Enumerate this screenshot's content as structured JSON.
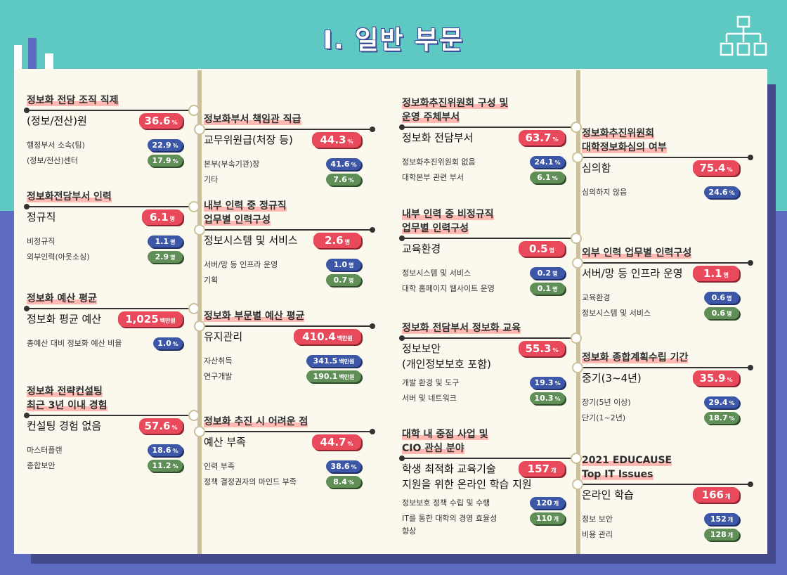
{
  "title": "Ⅰ. 일반 부문",
  "colors": {
    "teal": "#5ec8c2",
    "indigo": "#5d6cc0",
    "red": "#e84a5b",
    "blue": "#3d57a8",
    "green": "#5f8f57",
    "panel": "#fbf9ee"
  },
  "sections": {
    "s1": {
      "title": "정보화 전담 조직 직제",
      "main": "(정보/전산)원",
      "main_val": "36.6",
      "main_unit": "%",
      "r1": "행정부서 소속(팀)",
      "r1_val": "22.9",
      "r1_unit": "%",
      "r2": "(정보/전산)센터",
      "r2_val": "17.9",
      "r2_unit": "%"
    },
    "s2": {
      "title": "정보화전담부서 인력",
      "main": "정규직",
      "main_val": "6.1",
      "main_unit": "명",
      "r1": "비정규직",
      "r1_val": "1.1",
      "r1_unit": "명",
      "r2": "외부인력(아웃소싱)",
      "r2_val": "2.9",
      "r2_unit": "명"
    },
    "s3": {
      "title": "정보화 예산 평균",
      "main": "정보화 평균 예산",
      "main_val": "1,025",
      "main_unit": "백만원",
      "r1": "총예산 대비 정보화 예산 비율",
      "r1_val": "1.0",
      "r1_unit": "%"
    },
    "s4": {
      "title": "정보화 전략컨설팅\n최근 3년 이내 경험",
      "main": "컨설팅 경험 없음",
      "main_val": "57.6",
      "main_unit": "%",
      "r1": "마스터플랜",
      "r1_val": "18.6",
      "r1_unit": "%",
      "r2": "종합보안",
      "r2_val": "11.2",
      "r2_unit": "%"
    },
    "s5": {
      "title": "정보화부서 책임관 직급",
      "main": "교무위원급(처장 등)",
      "main_val": "44.3",
      "main_unit": "%",
      "r1": "본부(부속기관)장",
      "r1_val": "41.6",
      "r1_unit": "%",
      "r2": "기타",
      "r2_val": "7.6",
      "r2_unit": "%"
    },
    "s6": {
      "title": "내부 인력 중 정규직\n업무별 인력구성",
      "main": "정보시스템 및 서비스",
      "main_val": "2.6",
      "main_unit": "명",
      "r1": "서버/망 등 인프라 운영",
      "r1_val": "1.0",
      "r1_unit": "명",
      "r2": "기획",
      "r2_val": "0.7",
      "r2_unit": "명"
    },
    "s7": {
      "title": "정보화 부문별 예산 평균",
      "main": "유지관리",
      "main_val": "410.4",
      "main_unit": "백만원",
      "r1": "자산취득",
      "r1_val": "341.5",
      "r1_unit": "백만원",
      "r2": "연구개발",
      "r2_val": "190.1",
      "r2_unit": "백만원"
    },
    "s8": {
      "title": "정보화 추진 시 어려운 점",
      "main": "예산 부족",
      "main_val": "44.7",
      "main_unit": "%",
      "r1": "인력 부족",
      "r1_val": "38.6",
      "r1_unit": "%",
      "r2": "정책 결정권자의 마인드 부족",
      "r2_val": "8.4",
      "r2_unit": "%"
    },
    "s9": {
      "title": "정보화추진위원회 구성 및\n운영 주체부서",
      "main": "정보화 전담부서",
      "main_val": "63.7",
      "main_unit": "%",
      "r1": "정보화추진위원회 없음",
      "r1_val": "24.1",
      "r1_unit": "%",
      "r2": "대학본부 관련 부서",
      "r2_val": "6.1",
      "r2_unit": "%"
    },
    "s10": {
      "title": "내부 인력 중 비정규직\n업무별 인력구성",
      "main": "교육환경",
      "main_val": "0.5",
      "main_unit": "명",
      "r1": "정보시스템 및 서비스",
      "r1_val": "0.2",
      "r1_unit": "명",
      "r2": "대학 홈페이지 웹사이트 운영",
      "r2_val": "0.1",
      "r2_unit": "명"
    },
    "s11": {
      "title": "정보화 전담부서 정보화 교육",
      "main": "정보보안",
      "main2": "(개인정보보호 포함)",
      "main_val": "55.3",
      "main_unit": "%",
      "r1": "개발 환경 및 도구",
      "r1_val": "19.3",
      "r1_unit": "%",
      "r2": "서버 및 네트워크",
      "r2_val": "10.3",
      "r2_unit": "%"
    },
    "s12": {
      "title": "대학 내 중점 사업 및\nCIO 관심 분야",
      "main": "학생 최적화 교육기술",
      "main2": "지원을 위한 온라인 학습 지원",
      "main_val": "157",
      "main_unit": "개",
      "r1": "정보보호 정책 수립 및 수행",
      "r1_val": "120",
      "r1_unit": "개",
      "r2": "IT를 통한 대학의 경영 효율성",
      "r2b": "향상",
      "r2_val": "110",
      "r2_unit": "개"
    },
    "s13": {
      "title": "정보화추진위원회\n대학정보화심의 여부",
      "main": "심의함",
      "main_val": "75.4",
      "main_unit": "%",
      "r1": "심의하지 않음",
      "r1_val": "24.6",
      "r1_unit": "%"
    },
    "s14": {
      "title": "외부 인력 업무별 인력구성",
      "main": "서버/망 등 인프라 운영",
      "main_val": "1.1",
      "main_unit": "명",
      "r1": "교육환경",
      "r1_val": "0.6",
      "r1_unit": "명",
      "r2": "정보시스템 및 서비스",
      "r2_val": "0.6",
      "r2_unit": "명"
    },
    "s15": {
      "title": "정보화 종합계획수립 기간",
      "main": "중기(3~4년)",
      "main_val": "35.9",
      "main_unit": "%",
      "r1": "장기(5년 이상)",
      "r1_val": "29.4",
      "r1_unit": "%",
      "r2": "단기(1~2년)",
      "r2_val": "18.7",
      "r2_unit": "%"
    },
    "s16": {
      "title": "2021 EDUCAUSE\nTop IT Issues",
      "main": "온라인 학습",
      "main_val": "166",
      "main_unit": "개",
      "r1": "정보 보안",
      "r1_val": "152",
      "r1_unit": "개",
      "r2": "비용 관리",
      "r2_val": "128",
      "r2_unit": "개"
    }
  }
}
